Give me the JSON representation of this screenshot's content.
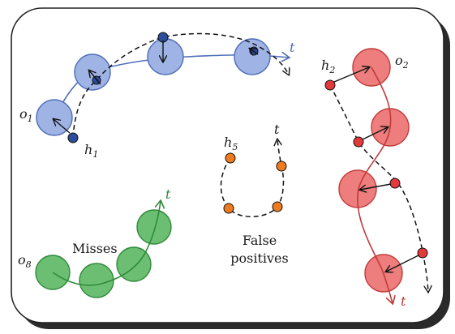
{
  "labels": {
    "o1": {
      "main": "o",
      "sub": "1"
    },
    "h1": {
      "main": "h",
      "sub": "1"
    },
    "o2": {
      "main": "o",
      "sub": "2"
    },
    "h2": {
      "main": "h",
      "sub": "2"
    },
    "h5": {
      "main": "h",
      "sub": "5"
    },
    "o8": {
      "main": "o",
      "sub": "8"
    },
    "t_blue": "t",
    "t_h5": "t",
    "t_green": "t",
    "t_red": "t"
  },
  "text": {
    "misses": "Misses",
    "false_positives_line1": "False",
    "false_positives_line2": "positives"
  },
  "colors": {
    "blue_fill": "#9fb4e4",
    "blue_stroke": "#4f6fb8",
    "blue_point": "#2c4c9c",
    "red_fill": "#ee7d7d",
    "red_stroke": "#c23b3b",
    "red_point": "#e23a3a",
    "green_fill": "#6cbf72",
    "green_stroke": "#2f8a3a",
    "orange_point": "#f07b1f"
  }
}
